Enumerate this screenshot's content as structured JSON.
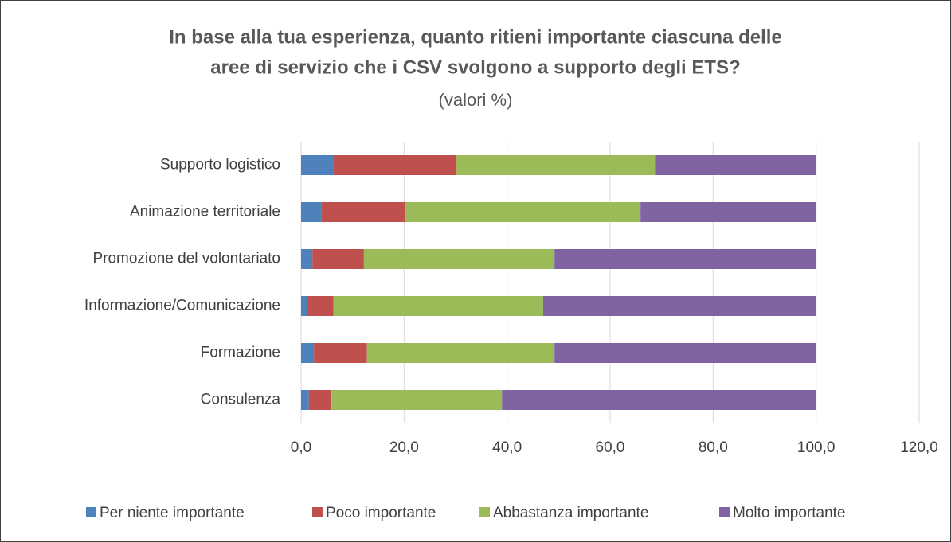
{
  "chart_data": {
    "type": "stacked_barh",
    "title": [
      "In base alla tua esperienza, quanto ritieni importante ciascuna delle",
      "aree di servizio che i CSV svolgono a supporto degli ETS?"
    ],
    "subtitle": "(valori %)",
    "categories": [
      "Supporto logistico",
      "Animazione territoriale",
      "Promozione del volontariato",
      "Informazione/Comunicazione",
      "Formazione",
      "Consulenza"
    ],
    "series": [
      {
        "name": "Per niente importante",
        "color": "#4f81bd",
        "values": [
          6.2,
          3.9,
          2.2,
          1.1,
          2.5,
          1.5
        ]
      },
      {
        "name": "Poco importante",
        "color": "#c0504d",
        "values": [
          24.0,
          16.4,
          10.0,
          5.2,
          10.3,
          4.4
        ]
      },
      {
        "name": "Abbastanza importante",
        "color": "#9bbb59",
        "values": [
          38.5,
          45.6,
          37.0,
          40.7,
          36.4,
          33.1
        ]
      },
      {
        "name": "Molto importante",
        "color": "#8064a2",
        "values": [
          31.3,
          34.1,
          50.8,
          53.0,
          50.8,
          61.0
        ]
      }
    ],
    "xlim": [
      0,
      120
    ],
    "xticks": [
      {
        "value": 0,
        "label": "0,0"
      },
      {
        "value": 20,
        "label": "20,0"
      },
      {
        "value": 40,
        "label": "40,0"
      },
      {
        "value": 60,
        "label": "60,0"
      },
      {
        "value": 80,
        "label": "80,0"
      },
      {
        "value": 100,
        "label": "100,0"
      },
      {
        "value": 120,
        "label": "120,0"
      }
    ],
    "grid": true,
    "legend": "bottom"
  }
}
